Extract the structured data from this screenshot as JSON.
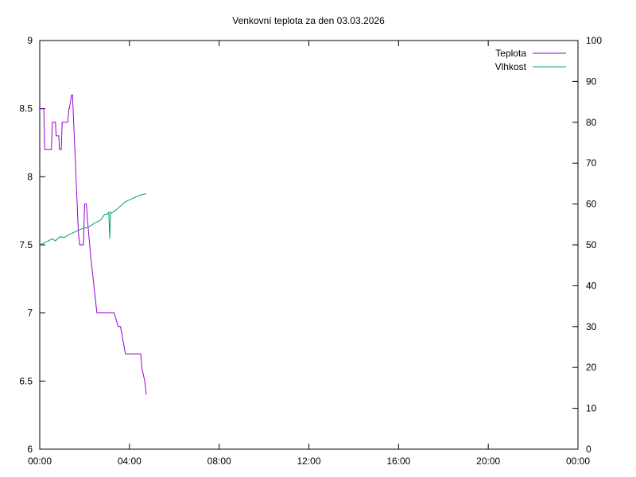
{
  "chart_data": {
    "type": "line",
    "title": "Venkovní teplota za den 03.03.2026",
    "x_ticks": [
      "00:00",
      "04:00",
      "08:00",
      "12:00",
      "16:00",
      "20:00",
      "00:00"
    ],
    "x_range_hours": [
      0,
      24
    ],
    "y_left": {
      "min": 6,
      "max": 9,
      "ticks": [
        "6",
        "6.5",
        "7",
        "7.5",
        "8",
        "8.5",
        "9"
      ]
    },
    "y_right": {
      "min": 0,
      "max": 100,
      "ticks": [
        "0",
        "10",
        "20",
        "30",
        "40",
        "50",
        "60",
        "70",
        "80",
        "90",
        "100"
      ]
    },
    "grid": false,
    "legend_position": "top-right",
    "series": [
      {
        "name": "Teplota",
        "axis": "left",
        "color": "#9400d3",
        "x": [
          0.0,
          0.18,
          0.22,
          0.52,
          0.56,
          0.7,
          0.73,
          0.85,
          0.88,
          0.96,
          1.0,
          1.25,
          1.3,
          1.32,
          1.42,
          1.46,
          1.72,
          1.78,
          1.95,
          2.0,
          2.08,
          2.12,
          2.28,
          2.35,
          2.48,
          2.55,
          2.7,
          2.72,
          3.32,
          3.5,
          3.6,
          3.82,
          4.5,
          4.55,
          4.68,
          4.75
        ],
        "y": [
          8.5,
          8.5,
          8.2,
          8.2,
          8.4,
          8.4,
          8.3,
          8.3,
          8.2,
          8.2,
          8.4,
          8.4,
          8.5,
          8.5,
          8.6,
          8.6,
          7.6,
          7.5,
          7.5,
          7.8,
          7.8,
          7.7,
          7.4,
          7.3,
          7.1,
          7.0,
          7.0,
          7.0,
          7.0,
          6.9,
          6.9,
          6.7,
          6.7,
          6.6,
          6.5,
          6.4
        ]
      },
      {
        "name": "Vlhkost",
        "axis": "right",
        "color": "#009e73",
        "x": [
          0.0,
          0.2,
          0.4,
          0.55,
          0.7,
          0.9,
          1.1,
          1.3,
          1.5,
          1.7,
          1.9,
          2.1,
          2.3,
          2.5,
          2.7,
          2.9,
          3.0,
          3.08,
          3.12,
          3.16,
          3.2,
          3.4,
          3.6,
          3.8,
          4.0,
          4.2,
          4.4,
          4.55,
          4.75
        ],
        "y": [
          50,
          50.5,
          51,
          51.5,
          51,
          52,
          51.8,
          52.5,
          53,
          53.5,
          54,
          54.2,
          54.8,
          55.5,
          56,
          57.5,
          57.5,
          58,
          51.5,
          58,
          57.8,
          58.5,
          59.5,
          60.5,
          61,
          61.5,
          62,
          62.3,
          62.5
        ]
      }
    ]
  }
}
